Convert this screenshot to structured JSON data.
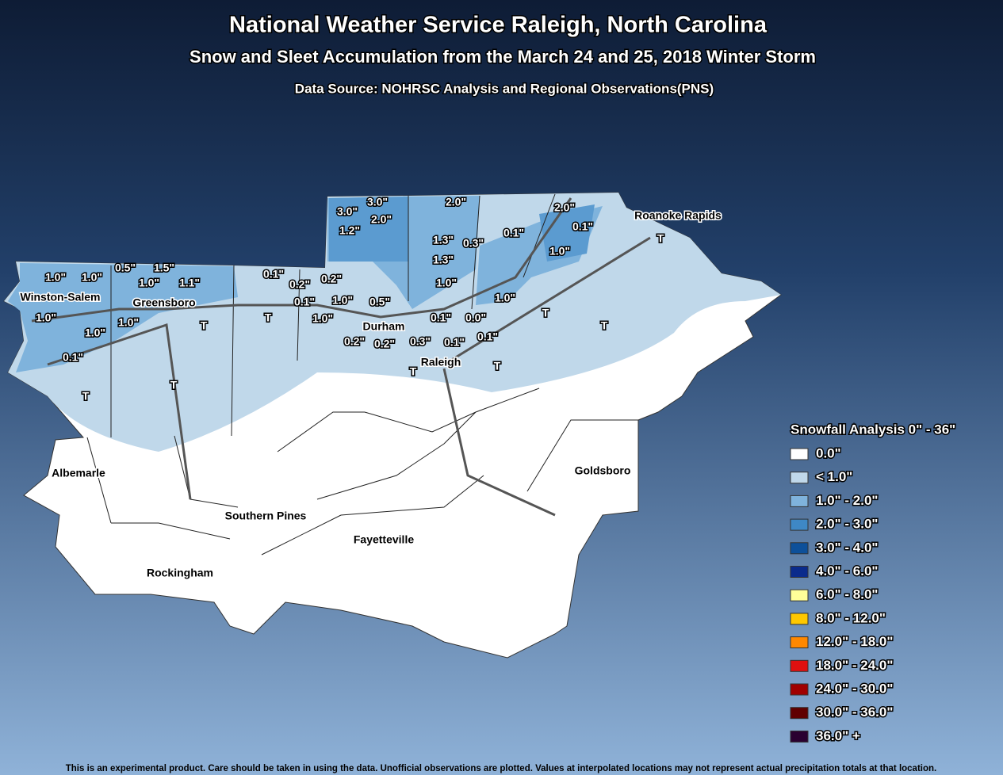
{
  "header": {
    "title": "National Weather Service Raleigh, North Carolina",
    "subtitle": "Snow and Sleet Accumulation from the March 24 and 25, 2018 Winter Storm",
    "source": "Data Source: NOHRSC Analysis and Regional Observations(PNS)"
  },
  "cities": [
    "Winston-Salem",
    "Greensboro",
    "Durham",
    "Raleigh",
    "Roanoke Rapids",
    "Albemarle",
    "Goldsboro",
    "Southern Pines",
    "Fayetteville",
    "Rockingham"
  ],
  "observations": [
    "1.0\"",
    "1.0\"",
    "0.5\"",
    "1.5\"",
    "1.0\"",
    "1.1\"",
    "1.0\"",
    "1.0\"",
    "1.0\"",
    "0.1\"",
    "3.0\"",
    "3.0\"",
    "2.0\"",
    "1.2\"",
    "2.0\"",
    "2.0\"",
    "0.1\"",
    "0.1\"",
    "0.3\"",
    "1.3\"",
    "1.3\"",
    "1.0\"",
    "1.0\"",
    "1.0\"",
    "0.1\"",
    "0.2\"",
    "0.2\"",
    "0.1\"",
    "1.0\"",
    "0.5\"",
    "1.0\"",
    "0.1\"",
    "0.0\"",
    "0.1\"",
    "0.2\"",
    "0.2\"",
    "0.3\"",
    "0.1\"",
    "T",
    "T",
    "T",
    "T",
    "T",
    "T",
    "T",
    "T",
    "T"
  ],
  "legend": {
    "title": "Snowfall Analysis 0\" - 36\"",
    "items": [
      {
        "label": "0.0\"",
        "color": "#ffffff"
      },
      {
        "label": "< 1.0\"",
        "color": "#c0d8ea"
      },
      {
        "label": "1.0\" - 2.0\"",
        "color": "#7fb3dc"
      },
      {
        "label": "2.0\" - 3.0\"",
        "color": "#3e88c5"
      },
      {
        "label": "3.0\" - 4.0\"",
        "color": "#0d509a"
      },
      {
        "label": "4.0\" - 6.0\"",
        "color": "#0a2b8c"
      },
      {
        "label": "6.0\" - 8.0\"",
        "color": "#ffff99"
      },
      {
        "label": "8.0\" - 12.0\"",
        "color": "#ffc800"
      },
      {
        "label": "12.0\" - 18.0\"",
        "color": "#ff8800"
      },
      {
        "label": "18.0\" - 24.0\"",
        "color": "#e01010"
      },
      {
        "label": "24.0\" - 30.0\"",
        "color": "#a00000"
      },
      {
        "label": "30.0\" - 36.0\"",
        "color": "#600000"
      },
      {
        "label": "36.0\" +",
        "color": "#2a0030"
      }
    ]
  },
  "footer": "This is an experimental product. Care should be taken in using the data. Unofficial observations are plotted. Values at interpolated locations may not represent actual precipitation totals at that location."
}
